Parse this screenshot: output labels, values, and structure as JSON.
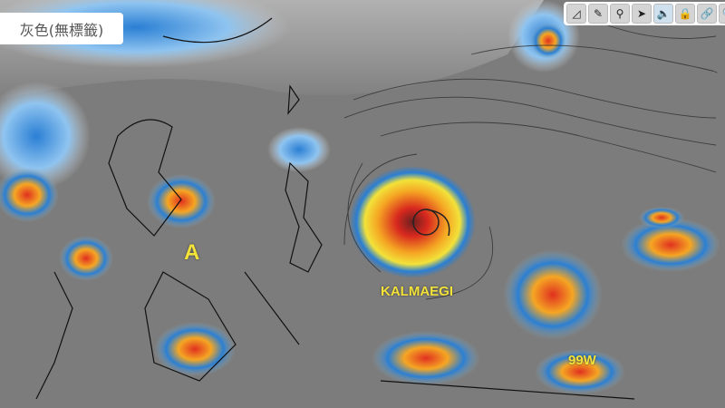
{
  "layer_label": "灰色(無標籤)",
  "toolbar": [
    {
      "icon": "ruler-icon",
      "glyph": "◿",
      "active": false
    },
    {
      "icon": "pencil-icon",
      "glyph": "✎",
      "active": false
    },
    {
      "icon": "map-pin-icon",
      "glyph": "⚲",
      "active": false
    },
    {
      "icon": "navigation-arrow-icon",
      "glyph": "➤",
      "active": false
    },
    {
      "icon": "speaker-icon",
      "glyph": "🔈",
      "active": true
    },
    {
      "icon": "lock-icon",
      "glyph": "🔒",
      "active": false
    },
    {
      "icon": "link-icon",
      "glyph": "🔗",
      "active": false
    },
    {
      "icon": "search-icon",
      "glyph": "🔍",
      "active": false
    }
  ],
  "map_labels": {
    "a": "A",
    "typhoon": "KALMAEGI",
    "invest": "99W"
  },
  "colors": {
    "label": "#f2e23a",
    "cloud_cold": "#e03020",
    "cloud_mid": "#f5a623",
    "cloud_cool": "#2a7fd4"
  }
}
